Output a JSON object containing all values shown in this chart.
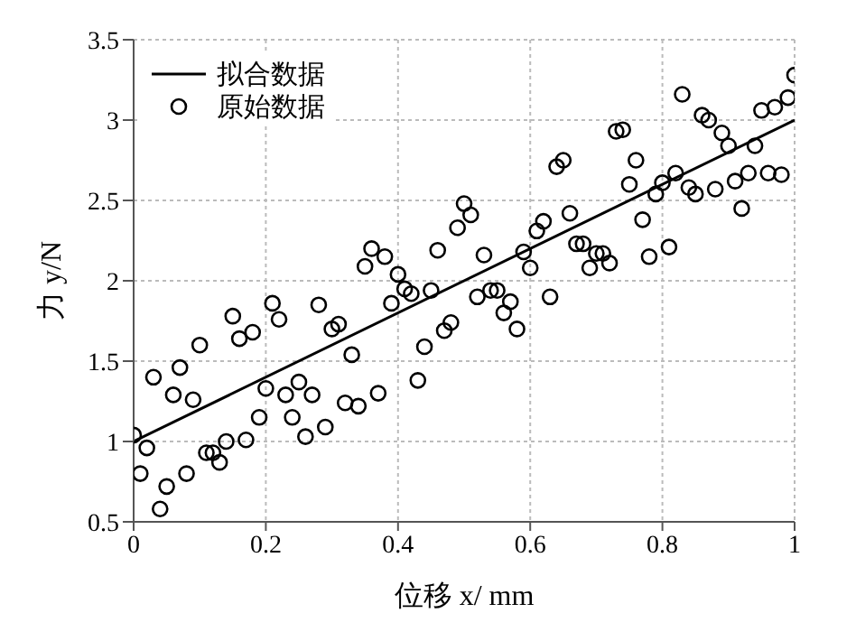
{
  "chart_data": {
    "type": "scatter",
    "xlabel": "位移 x/ mm",
    "ylabel": "力 y/N",
    "x": [
      0,
      0.01,
      0.02,
      0.03,
      0.04,
      0.05,
      0.06,
      0.07,
      0.08,
      0.09,
      0.1,
      0.11,
      0.12,
      0.13,
      0.14,
      0.15,
      0.16,
      0.17,
      0.18,
      0.19,
      0.2,
      0.21,
      0.22,
      0.23,
      0.24,
      0.25,
      0.26,
      0.27,
      0.28,
      0.29,
      0.3,
      0.31,
      0.32,
      0.33,
      0.34,
      0.35,
      0.36,
      0.37,
      0.38,
      0.39,
      0.4,
      0.41,
      0.42,
      0.43,
      0.44,
      0.45,
      0.46,
      0.47,
      0.48,
      0.49,
      0.5,
      0.51,
      0.52,
      0.53,
      0.54,
      0.55,
      0.56,
      0.57,
      0.58,
      0.59,
      0.6,
      0.61,
      0.62,
      0.63,
      0.64,
      0.65,
      0.66,
      0.67,
      0.68,
      0.69,
      0.7,
      0.71,
      0.72,
      0.73,
      0.74,
      0.75,
      0.76,
      0.77,
      0.78,
      0.79,
      0.8,
      0.81,
      0.82,
      0.83,
      0.84,
      0.85,
      0.86,
      0.87,
      0.88,
      0.89,
      0.9,
      0.91,
      0.92,
      0.93,
      0.94,
      0.95,
      0.96,
      0.97,
      0.98,
      0.99,
      1
    ],
    "series": [
      {
        "name": "拟合数据",
        "type": "line",
        "marker": "none",
        "color": "#000000",
        "x": [
          0,
          1
        ],
        "values": [
          1.0,
          3.0
        ]
      },
      {
        "name": "原始数据",
        "marker": "circle",
        "color": "#000000",
        "values": [
          1.04,
          0.8,
          0.96,
          1.4,
          0.58,
          0.72,
          1.29,
          1.46,
          0.8,
          1.26,
          1.6,
          0.93,
          0.93,
          0.87,
          1.0,
          1.78,
          1.64,
          1.01,
          1.68,
          1.15,
          1.33,
          1.86,
          1.76,
          1.29,
          1.15,
          1.37,
          1.03,
          1.29,
          1.85,
          1.09,
          1.7,
          1.73,
          1.24,
          1.54,
          1.22,
          2.09,
          2.2,
          1.3,
          2.15,
          1.86,
          2.04,
          1.95,
          1.92,
          1.38,
          1.59,
          1.94,
          2.19,
          1.69,
          1.74,
          2.33,
          2.48,
          2.41,
          1.9,
          2.16,
          1.94,
          1.94,
          1.8,
          1.87,
          1.7,
          2.18,
          2.08,
          2.31,
          2.37,
          1.9,
          2.71,
          2.75,
          2.42,
          2.23,
          2.23,
          2.08,
          2.17,
          2.17,
          2.11,
          2.93,
          2.94,
          2.6,
          2.75,
          2.38,
          2.15,
          2.54,
          2.61,
          2.21,
          2.67,
          3.16,
          2.58,
          2.54,
          3.03,
          3.0,
          2.57,
          2.92,
          2.84,
          2.62,
          2.45,
          2.67,
          2.84,
          3.06,
          2.67,
          3.08,
          2.66,
          3.14,
          3.28
        ]
      }
    ],
    "xlim": [
      0,
      1
    ],
    "xticks": [
      0,
      0.2,
      0.4,
      0.6,
      0.8,
      1
    ],
    "ylim": [
      0.5,
      3.5
    ],
    "yticks": [
      0.5,
      1,
      1.5,
      2,
      2.5,
      3,
      3.5
    ],
    "grid": true,
    "legend": "top left",
    "line_style": "solid"
  }
}
